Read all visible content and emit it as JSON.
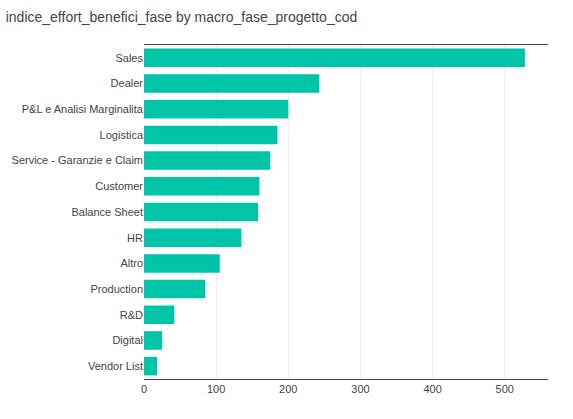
{
  "chart_data": {
    "type": "bar",
    "orientation": "horizontal",
    "title": "indice_effort_benefici_fase by macro_fase_progetto_cod",
    "categories": [
      "Vendor List",
      "Digital",
      "R&D",
      "Production",
      "Altro",
      "HR",
      "Balance Sheet",
      "Customer",
      "Service - Garanzie e Claim",
      "Logistica",
      "P&L e Analisi Marginalita",
      "Dealer",
      "Sales"
    ],
    "values": [
      18,
      25,
      42,
      85,
      105,
      135,
      158,
      160,
      175,
      185,
      200,
      243,
      528
    ],
    "color": "#00C4A7",
    "xlim": [
      0,
      560
    ],
    "xticks": [
      0,
      100,
      200,
      300,
      400,
      500
    ],
    "grid": true
  }
}
